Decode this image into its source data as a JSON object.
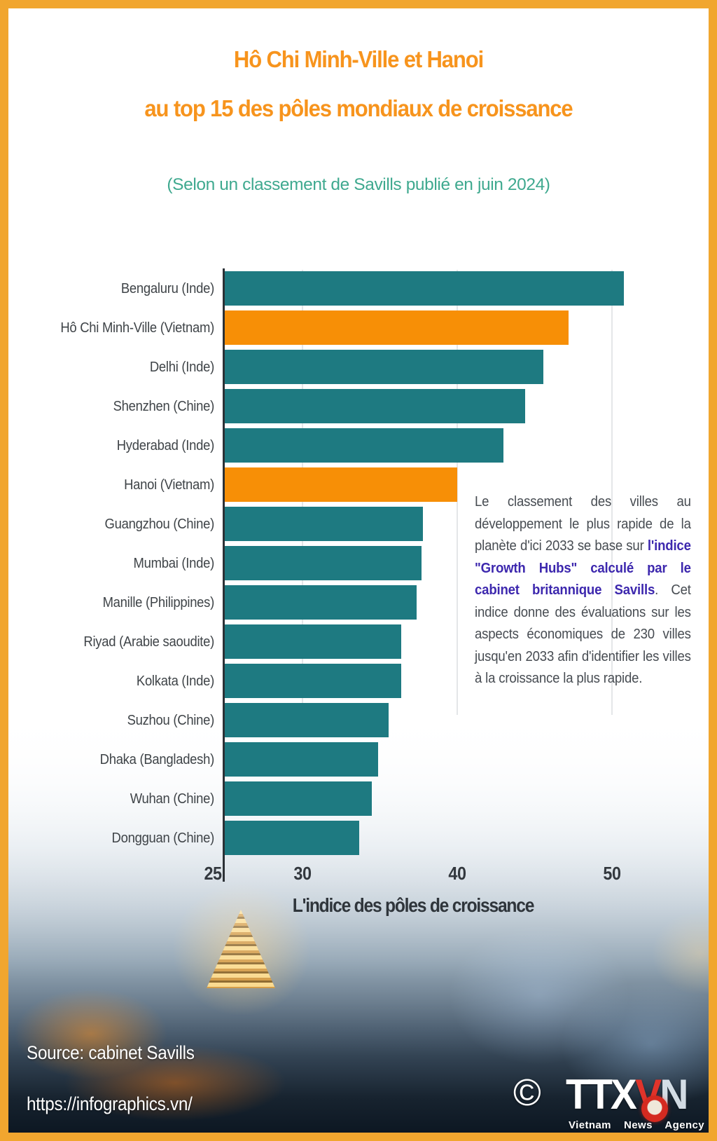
{
  "header": {
    "title_line1": "Hô Chi Minh-Ville et Hanoi",
    "title_line2": "au top 15 des pôles mondiaux de croissance",
    "subtitle": "(Selon un classement de Savills publié en juin 2024)"
  },
  "colors": {
    "frame": "#f1a62f",
    "title": "#f7941d",
    "subtitle": "#3fa98f",
    "bar_teal": "#1e7a81",
    "bar_orange": "#f78f06",
    "annotation_bold": "#3d28ae",
    "annotation_text": "#474c52",
    "logo_red": "#e0342b"
  },
  "chart_data": {
    "type": "bar",
    "orientation": "horizontal",
    "categories": [
      "Bengaluru (Inde)",
      "Hô Chi Minh-Ville (Vietnam)",
      "Delhi (Inde)",
      "Shenzhen (Chine)",
      "Hyderabad (Inde)",
      "Hanoi (Vietnam)",
      "Guangzhou (Chine)",
      "Mumbai (Inde)",
      "Manille (Philippines)",
      "Riyad (Arabie saoudite)",
      "Kolkata (Inde)",
      "Suzhou (Chine)",
      "Dhaka (Bangladesh)",
      "Wuhan (Chine)",
      "Dongguan (Chine)"
    ],
    "values": [
      50.8,
      47.2,
      45.6,
      44.4,
      43.0,
      40.0,
      37.8,
      37.7,
      37.4,
      36.4,
      36.4,
      35.6,
      34.9,
      34.5,
      33.7
    ],
    "highlight_indices": [
      1,
      5
    ],
    "xlabel": "L'indice des pôles de croissance",
    "xlim": [
      25,
      55
    ],
    "xticks": [
      {
        "label": "25",
        "value": 25
      },
      {
        "label": "30",
        "value": 30
      },
      {
        "label": "40",
        "value": 40
      },
      {
        "label": "50",
        "value": 50
      }
    ],
    "gridline_values": [
      30,
      40,
      50
    ],
    "grid": "vertical-light",
    "legend": "none"
  },
  "annotation": {
    "segments": [
      {
        "text": "Le classement des villes au développement le plus rapide de la planète d'ici 2033 se base sur ",
        "bold": false
      },
      {
        "text": "l'indice \"Growth Hubs\" calculé par le cabinet britannique Savills",
        "bold": true
      },
      {
        "text": ". Cet indice donne des évaluations sur les aspects économiques de 230 villes jusqu'en 2033 afin d'identifier les villes à la croissance la plus rapide.",
        "bold": false
      }
    ]
  },
  "footer": {
    "source": "Source: cabinet Savills",
    "url": "https://infographics.vn/",
    "copyright_symbol": "©",
    "logo": {
      "part1": "TTX",
      "part2": "V",
      "part3": "N",
      "tagline": "Vietnam News Agency"
    }
  }
}
